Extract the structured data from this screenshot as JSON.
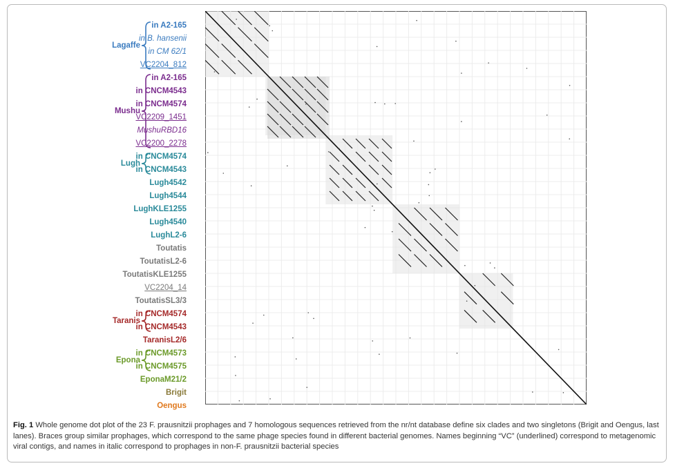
{
  "colors": {
    "lagaffe": "#3a7bbf",
    "mushu": "#7b2d8e",
    "lugh": "#2a8a9a",
    "toutatis": "#7a7a7a",
    "taranis": "#a52a2a",
    "epona": "#6b9a2a",
    "brigit": "#8a7a3a",
    "oengus": "#e07a1f"
  },
  "groups": [
    {
      "name": "Lagaffe",
      "color_key": "lagaffe"
    },
    {
      "name": "Mushu",
      "color_key": "mushu"
    },
    {
      "name": "Lugh",
      "color_key": "lugh"
    },
    {
      "name": "Taranis",
      "color_key": "taranis"
    },
    {
      "name": "Epona",
      "color_key": "epona"
    }
  ],
  "lanes": [
    {
      "label": "in A2-165",
      "style": "bold",
      "color_key": "lagaffe"
    },
    {
      "label": "in B. hansenii",
      "style": "italic",
      "color_key": "lagaffe"
    },
    {
      "label": "in CM 62/1",
      "style": "italic",
      "color_key": "lagaffe"
    },
    {
      "label": "VC2204_812",
      "style": "ul",
      "color_key": "lagaffe"
    },
    {
      "label": "in A2-165",
      "style": "bold",
      "color_key": "mushu"
    },
    {
      "label": "in CNCM4543",
      "style": "bold",
      "color_key": "mushu"
    },
    {
      "label": "in CNCM4574",
      "style": "bold",
      "color_key": "mushu"
    },
    {
      "label": "VC2209_1451",
      "style": "ul",
      "color_key": "mushu"
    },
    {
      "label": "MushuRBD16",
      "style": "italic",
      "color_key": "mushu"
    },
    {
      "label": "VC2200_2278",
      "style": "ul",
      "color_key": "mushu"
    },
    {
      "label": "in CNCM4574",
      "style": "bold",
      "color_key": "lugh"
    },
    {
      "label": "in CNCM4543",
      "style": "bold",
      "color_key": "lugh"
    },
    {
      "label": "Lugh4542",
      "style": "bold",
      "color_key": "lugh"
    },
    {
      "label": "Lugh4544",
      "style": "bold",
      "color_key": "lugh"
    },
    {
      "label": "LughKLE1255",
      "style": "bold",
      "color_key": "lugh"
    },
    {
      "label": "Lugh4540",
      "style": "bold",
      "color_key": "lugh"
    },
    {
      "label": "LughL2-6",
      "style": "bold",
      "color_key": "lugh"
    },
    {
      "label": "Toutatis",
      "style": "bold",
      "color_key": "toutatis"
    },
    {
      "label": "ToutatisL2-6",
      "style": "bold",
      "color_key": "toutatis"
    },
    {
      "label": "ToutatisKLE1255",
      "style": "bold",
      "color_key": "toutatis"
    },
    {
      "label": "VC2204_14",
      "style": "ul",
      "color_key": "toutatis"
    },
    {
      "label": "ToutatisSL3/3",
      "style": "bold",
      "color_key": "toutatis"
    },
    {
      "label": "in CNCM4574",
      "style": "bold",
      "color_key": "taranis"
    },
    {
      "label": "in CNCM4543",
      "style": "bold",
      "color_key": "taranis"
    },
    {
      "label": "TaranisL2/6",
      "style": "bold",
      "color_key": "taranis"
    },
    {
      "label": "in CNCM4573",
      "style": "bold",
      "color_key": "epona"
    },
    {
      "label": "in CNCM4575",
      "style": "bold",
      "color_key": "epona"
    },
    {
      "label": "EponaM21/2",
      "style": "bold",
      "color_key": "epona"
    },
    {
      "label": "Brigit",
      "style": "bold",
      "color_key": "brigit"
    },
    {
      "label": "Oengus",
      "style": "bold",
      "color_key": "oengus"
    }
  ],
  "caption": {
    "fig": "Fig. 1",
    "text": " Whole genome dot plot of the 23 F. prausnitzii prophages and 7 homologous sequences retrieved from the nr/nt database define six clades and two singletons (Brigit and Oengus, last lanes). Braces group similar prophages, which correspond to the same phage species found in different bacterial genomes. Names beginning “VC” (underlined) correspond to metagenomic viral contigs, and names in italic correspond to prophages in non-F. prausnitzii bacterial species"
  }
}
